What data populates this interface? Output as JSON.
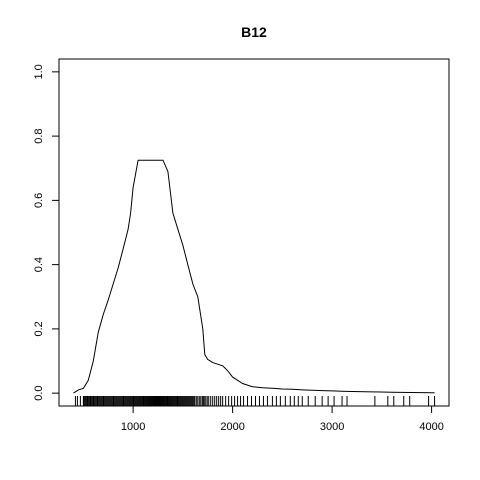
{
  "chart_data": {
    "type": "line",
    "title": "B12",
    "xlabel": "",
    "ylabel": "",
    "xlim": [
      255,
      4175
    ],
    "ylim": [
      -0.04,
      1.04
    ],
    "xticks": [
      1000,
      2000,
      3000,
      4000
    ],
    "xtick_labels": [
      "1000",
      "2000",
      "3000",
      "4000"
    ],
    "yticks": [
      0.0,
      0.2,
      0.4,
      0.6,
      0.8,
      1.0
    ],
    "ytick_labels": [
      "0.0",
      "0.2",
      "0.4",
      "0.6",
      "0.8",
      "1.0"
    ],
    "grid": false,
    "series": [
      {
        "x": [
          400,
          450,
          500,
          550,
          600,
          650,
          700,
          750,
          800,
          850,
          900,
          950,
          975,
          1000,
          1050,
          1100,
          1150,
          1200,
          1250,
          1300,
          1350,
          1400,
          1450,
          1500,
          1550,
          1600,
          1650,
          1700,
          1720,
          1750,
          1800,
          1850,
          1900,
          1950,
          2000,
          2050,
          2100,
          2150,
          2200,
          2300,
          2400,
          2500,
          2600,
          2700,
          2800,
          2900,
          3000,
          3100,
          3200,
          3400,
          3600,
          3800,
          4000,
          4030
        ],
        "y": [
          0.0,
          0.01,
          0.015,
          0.04,
          0.1,
          0.19,
          0.245,
          0.29,
          0.34,
          0.39,
          0.45,
          0.51,
          0.56,
          0.64,
          0.725,
          0.725,
          0.725,
          0.725,
          0.725,
          0.725,
          0.69,
          0.56,
          0.51,
          0.46,
          0.4,
          0.34,
          0.3,
          0.2,
          0.12,
          0.105,
          0.095,
          0.09,
          0.085,
          0.07,
          0.05,
          0.04,
          0.03,
          0.025,
          0.02,
          0.017,
          0.015,
          0.013,
          0.012,
          0.01,
          0.009,
          0.008,
          0.007,
          0.006,
          0.005,
          0.004,
          0.003,
          0.002,
          0.001,
          0.001
        ]
      }
    ],
    "rug": [
      420,
      440,
      470,
      500,
      505,
      515,
      520,
      530,
      540,
      545,
      555,
      560,
      570,
      575,
      580,
      590,
      600,
      605,
      615,
      620,
      630,
      640,
      645,
      655,
      660,
      670,
      680,
      690,
      700,
      705,
      715,
      725,
      735,
      745,
      755,
      760,
      770,
      780,
      790,
      800,
      805,
      815,
      825,
      835,
      845,
      850,
      860,
      870,
      880,
      890,
      900,
      905,
      915,
      925,
      935,
      945,
      950,
      960,
      970,
      980,
      990,
      1000,
      1005,
      1015,
      1025,
      1035,
      1045,
      1050,
      1060,
      1070,
      1080,
      1090,
      1100,
      1105,
      1115,
      1125,
      1135,
      1145,
      1150,
      1160,
      1170,
      1180,
      1190,
      1200,
      1205,
      1215,
      1225,
      1235,
      1245,
      1250,
      1260,
      1270,
      1280,
      1290,
      1300,
      1305,
      1315,
      1325,
      1335,
      1345,
      1350,
      1360,
      1370,
      1380,
      1390,
      1400,
      1405,
      1415,
      1425,
      1435,
      1445,
      1450,
      1460,
      1470,
      1480,
      1490,
      1500,
      1510,
      1520,
      1530,
      1540,
      1550,
      1560,
      1570,
      1580,
      1590,
      1600,
      1610,
      1620,
      1635,
      1650,
      1665,
      1680,
      1695,
      1705,
      1715,
      1730,
      1745,
      1760,
      1780,
      1800,
      1820,
      1840,
      1860,
      1880,
      1900,
      1930,
      1960,
      1990,
      2020,
      2050,
      2080,
      2110,
      2150,
      2190,
      2230,
      2270,
      2310,
      2350,
      2400,
      2440,
      2480,
      2530,
      2580,
      2620,
      2660,
      2700,
      2760,
      2830,
      2900,
      2960,
      3020,
      3100,
      3150,
      3430,
      3560,
      3620,
      3720,
      3780,
      3970,
      4030
    ]
  }
}
